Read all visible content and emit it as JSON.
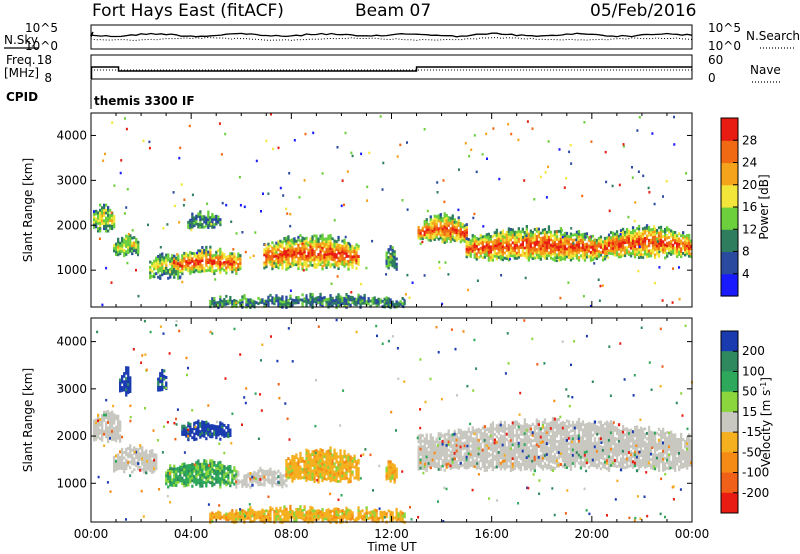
{
  "header": {
    "station": "Fort Hays East (fitACF)",
    "beam": "Beam 07",
    "date": "05/Feb/2016"
  },
  "strips": {
    "noise": {
      "left_label": "N.Sky",
      "right_label": "N.Search",
      "left_ticks": [
        "10^5",
        "10^0"
      ],
      "right_ticks": [
        "10^5",
        "10^0"
      ]
    },
    "frequency": {
      "left_label_line1": "Freq.",
      "left_label_line2": "[MHz]",
      "right_label": "Nave",
      "left_ticks": [
        "18",
        "8"
      ],
      "right_ticks": [
        "60",
        "0"
      ],
      "freq_steps_hours": [
        [
          0.0,
          8
        ],
        [
          0.02,
          14
        ],
        [
          1.1,
          12
        ],
        [
          13.0,
          14
        ],
        [
          24.0,
          14
        ]
      ]
    },
    "cpid": {
      "label": "CPID",
      "program": "themis 3300 IF"
    }
  },
  "chart_data": [
    {
      "type": "heatmap",
      "name": "power",
      "ylabel": "Slant Range [km]",
      "xlabel": "Time UT",
      "xlim_hours": [
        0,
        24
      ],
      "ylim_km": [
        180,
        4500
      ],
      "yticks": [
        "1000",
        "2000",
        "3000",
        "4000"
      ],
      "xticks": [
        "00:00",
        "04:00",
        "08:00",
        "12:00",
        "16:00",
        "20:00",
        "00:00"
      ],
      "colorbar": {
        "label": "Power [dB]",
        "ticks": [
          "4",
          "8",
          "12",
          "16",
          "20",
          "24",
          "28"
        ],
        "colors": [
          "#1a1aff",
          "#2a4aa0",
          "#2e7d5e",
          "#6ccf3c",
          "#f2e63a",
          "#f5a31a",
          "#f06a14",
          "#e81c12"
        ]
      },
      "regions": [
        {
          "t0": 0.1,
          "t1": 0.9,
          "r0": 1900,
          "r1": 2400,
          "level": "mid"
        },
        {
          "t0": 0.9,
          "t1": 1.9,
          "r0": 1350,
          "r1": 1750,
          "level": "mid"
        },
        {
          "t0": 2.4,
          "t1": 3.6,
          "r0": 850,
          "r1": 1350,
          "level": "mid"
        },
        {
          "t0": 3.3,
          "t1": 6.0,
          "r0": 950,
          "r1": 1450,
          "level": "high"
        },
        {
          "t0": 3.9,
          "t1": 5.2,
          "r0": 1950,
          "r1": 2250,
          "level": "low"
        },
        {
          "t0": 6.9,
          "t1": 10.7,
          "r0": 1050,
          "r1": 1750,
          "level": "high"
        },
        {
          "t0": 11.8,
          "t1": 12.2,
          "r0": 1050,
          "r1": 1450,
          "level": "low"
        },
        {
          "t0": 13.1,
          "t1": 15.0,
          "r0": 1650,
          "r1": 2200,
          "level": "high"
        },
        {
          "t0": 15.0,
          "t1": 20.5,
          "r0": 1250,
          "r1": 1900,
          "level": "high"
        },
        {
          "t0": 20.5,
          "t1": 24.0,
          "r0": 1300,
          "r1": 1950,
          "level": "high"
        },
        {
          "t0": 4.8,
          "t1": 12.5,
          "r0": 200,
          "r1": 400,
          "level": "low"
        }
      ]
    },
    {
      "type": "heatmap",
      "name": "velocity",
      "ylabel": "Slant Range [km]",
      "xlabel": "Time UT",
      "xlim_hours": [
        0,
        24
      ],
      "ylim_km": [
        180,
        4500
      ],
      "yticks": [
        "1000",
        "2000",
        "3000",
        "4000"
      ],
      "xticks": [
        "00:00",
        "04:00",
        "08:00",
        "12:00",
        "16:00",
        "20:00",
        "00:00"
      ],
      "colorbar": {
        "label": "Velocity [m s-1]",
        "ticks": [
          "200",
          "100",
          "50",
          "15",
          "-15",
          "-50",
          "-100",
          "-200"
        ],
        "colors": [
          "#1a3ab0",
          "#2e8a5e",
          "#2ea85a",
          "#8ad63c",
          "#c8c8c0",
          "#f5b020",
          "#f58a14",
          "#f06018",
          "#e81c12"
        ]
      },
      "regions": [
        {
          "t0": 0.1,
          "t1": 1.2,
          "r0": 1900,
          "r1": 2500,
          "level": "grey"
        },
        {
          "t0": 0.9,
          "t1": 2.6,
          "r0": 1250,
          "r1": 1750,
          "level": "grey"
        },
        {
          "t0": 1.2,
          "t1": 1.6,
          "r0": 2900,
          "r1": 3400,
          "level": "blue"
        },
        {
          "t0": 2.7,
          "t1": 3.0,
          "r0": 3000,
          "r1": 3400,
          "level": "blue"
        },
        {
          "t0": 3.6,
          "t1": 5.6,
          "r0": 1950,
          "r1": 2300,
          "level": "blue"
        },
        {
          "t0": 3.0,
          "t1": 5.8,
          "r0": 950,
          "r1": 1450,
          "level": "green"
        },
        {
          "t0": 5.8,
          "t1": 7.8,
          "r0": 950,
          "r1": 1250,
          "level": "grey"
        },
        {
          "t0": 7.8,
          "t1": 10.7,
          "r0": 1050,
          "r1": 1700,
          "level": "orange"
        },
        {
          "t0": 11.8,
          "t1": 12.2,
          "r0": 1050,
          "r1": 1450,
          "level": "orange"
        },
        {
          "t0": 13.1,
          "t1": 24.0,
          "r0": 1300,
          "r1": 2300,
          "level": "grey"
        },
        {
          "t0": 4.8,
          "t1": 12.5,
          "r0": 200,
          "r1": 450,
          "level": "orange"
        }
      ]
    }
  ]
}
